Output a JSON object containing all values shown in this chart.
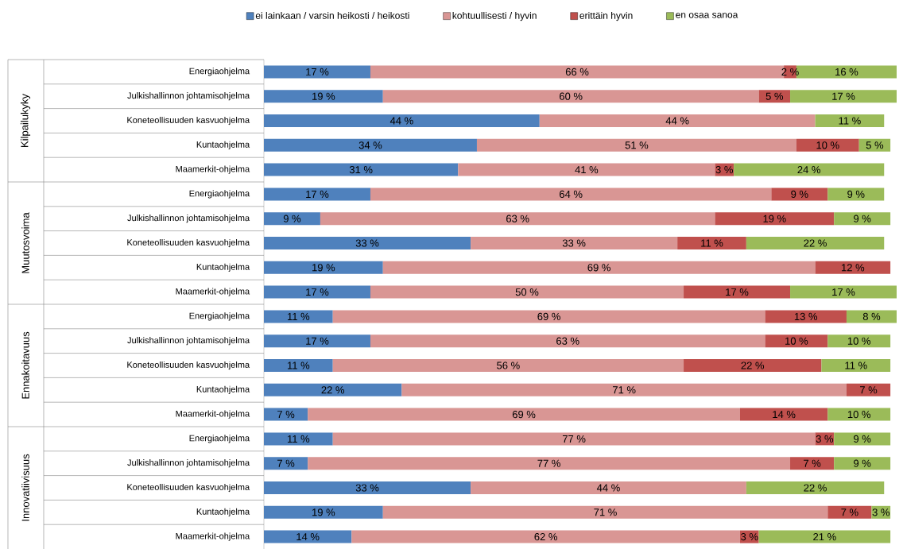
{
  "chart_data": {
    "type": "bar",
    "orientation": "horizontal",
    "stacked": true,
    "legend": "top",
    "xlim": [
      0,
      101
    ],
    "tick_labels": "y",
    "categories": [
      "Energiaohjelma",
      "Julkishallinnon johtamisohjelma",
      "Koneteollisuuden kasvuohjelma",
      "Kuntaohjelma",
      "Maamerkit-ohjelma",
      "Energiaohjelma",
      "Julkishallinnon johtamisohjelma",
      "Koneteollisuuden kasvuohjelma",
      "Kuntaohjelma",
      "Maamerkit-ohjelma",
      "Energiaohjelma",
      "Julkishallinnon johtamisohjelma",
      "Koneteollisuuden kasvuohjelma",
      "Kuntaohjelma",
      "Maamerkit-ohjelma",
      "Energiaohjelma",
      "Julkishallinnon johtamisohjelma",
      "Koneteollisuuden kasvuohjelma",
      "Kuntaohjelma",
      "Maamerkit-ohjelma"
    ],
    "annotations": [
      "Kilpailukyky",
      "Muutosvoima",
      "Ennakoitavuus",
      "Innovatiivisuus"
    ],
    "series": [
      {
        "name": "ei lainkaan / varsin heikosti / heikosti",
        "color": "#4f81bd",
        "values": [
          17,
          19,
          44,
          34,
          31,
          17,
          9,
          33,
          19,
          17,
          11,
          17,
          11,
          22,
          7,
          11,
          7,
          33,
          19,
          14
        ],
        "value_labels": [
          "17 %",
          "19 %",
          "44 %",
          "34 %",
          "31 %",
          "17 %",
          "9 %",
          "33 %",
          "19 %",
          "17 %",
          "11 %",
          "17 %",
          "11 %",
          "22 %",
          "7 %",
          "11 %",
          "7 %",
          "33 %",
          "19 %",
          "14 %"
        ]
      },
      {
        "name": "kohtuullisesti / hyvin",
        "color": "#d99694",
        "values": [
          66,
          60,
          44,
          51,
          41,
          64,
          63,
          33,
          69,
          50,
          69,
          63,
          56,
          71,
          69,
          77,
          77,
          44,
          71,
          62
        ],
        "value_labels": [
          "66 %",
          "60 %",
          "44 %",
          "51 %",
          "41 %",
          "64 %",
          "63 %",
          "33 %",
          "69 %",
          "50 %",
          "69 %",
          "63 %",
          "56 %",
          "71 %",
          "69 %",
          "77 %",
          "77 %",
          "44 %",
          "71 %",
          "62 %"
        ]
      },
      {
        "name": "erittäin hyvin",
        "color": "#c0504d",
        "values": [
          2,
          5,
          null,
          10,
          3,
          9,
          19,
          11,
          12,
          17,
          13,
          10,
          22,
          7,
          14,
          3,
          7,
          null,
          7,
          3
        ],
        "value_labels": [
          "2 %",
          "5 %",
          null,
          "10 %",
          "3 %",
          "9 %",
          "19 %",
          "11 %",
          "12 %",
          "17 %",
          "13 %",
          "10 %",
          "22 %",
          "7 %",
          "14 %",
          "3 %",
          "7 %",
          null,
          "7 %",
          "3 %"
        ]
      },
      {
        "name": "en osaa sanoa",
        "color": "#9bbb59",
        "values": [
          16,
          17,
          11,
          5,
          24,
          9,
          9,
          22,
          null,
          17,
          8,
          10,
          11,
          null,
          10,
          9,
          9,
          22,
          3,
          21
        ],
        "value_labels": [
          "16 %",
          "17 %",
          "11 %",
          "5 %",
          "24 %",
          "9 %",
          "9 %",
          "22 %",
          null,
          "17 %",
          "8 %",
          "10 %",
          "11 %",
          null,
          "10 %",
          "9 %",
          "9 %",
          "22 %",
          "3 %",
          "21 %"
        ]
      }
    ]
  }
}
